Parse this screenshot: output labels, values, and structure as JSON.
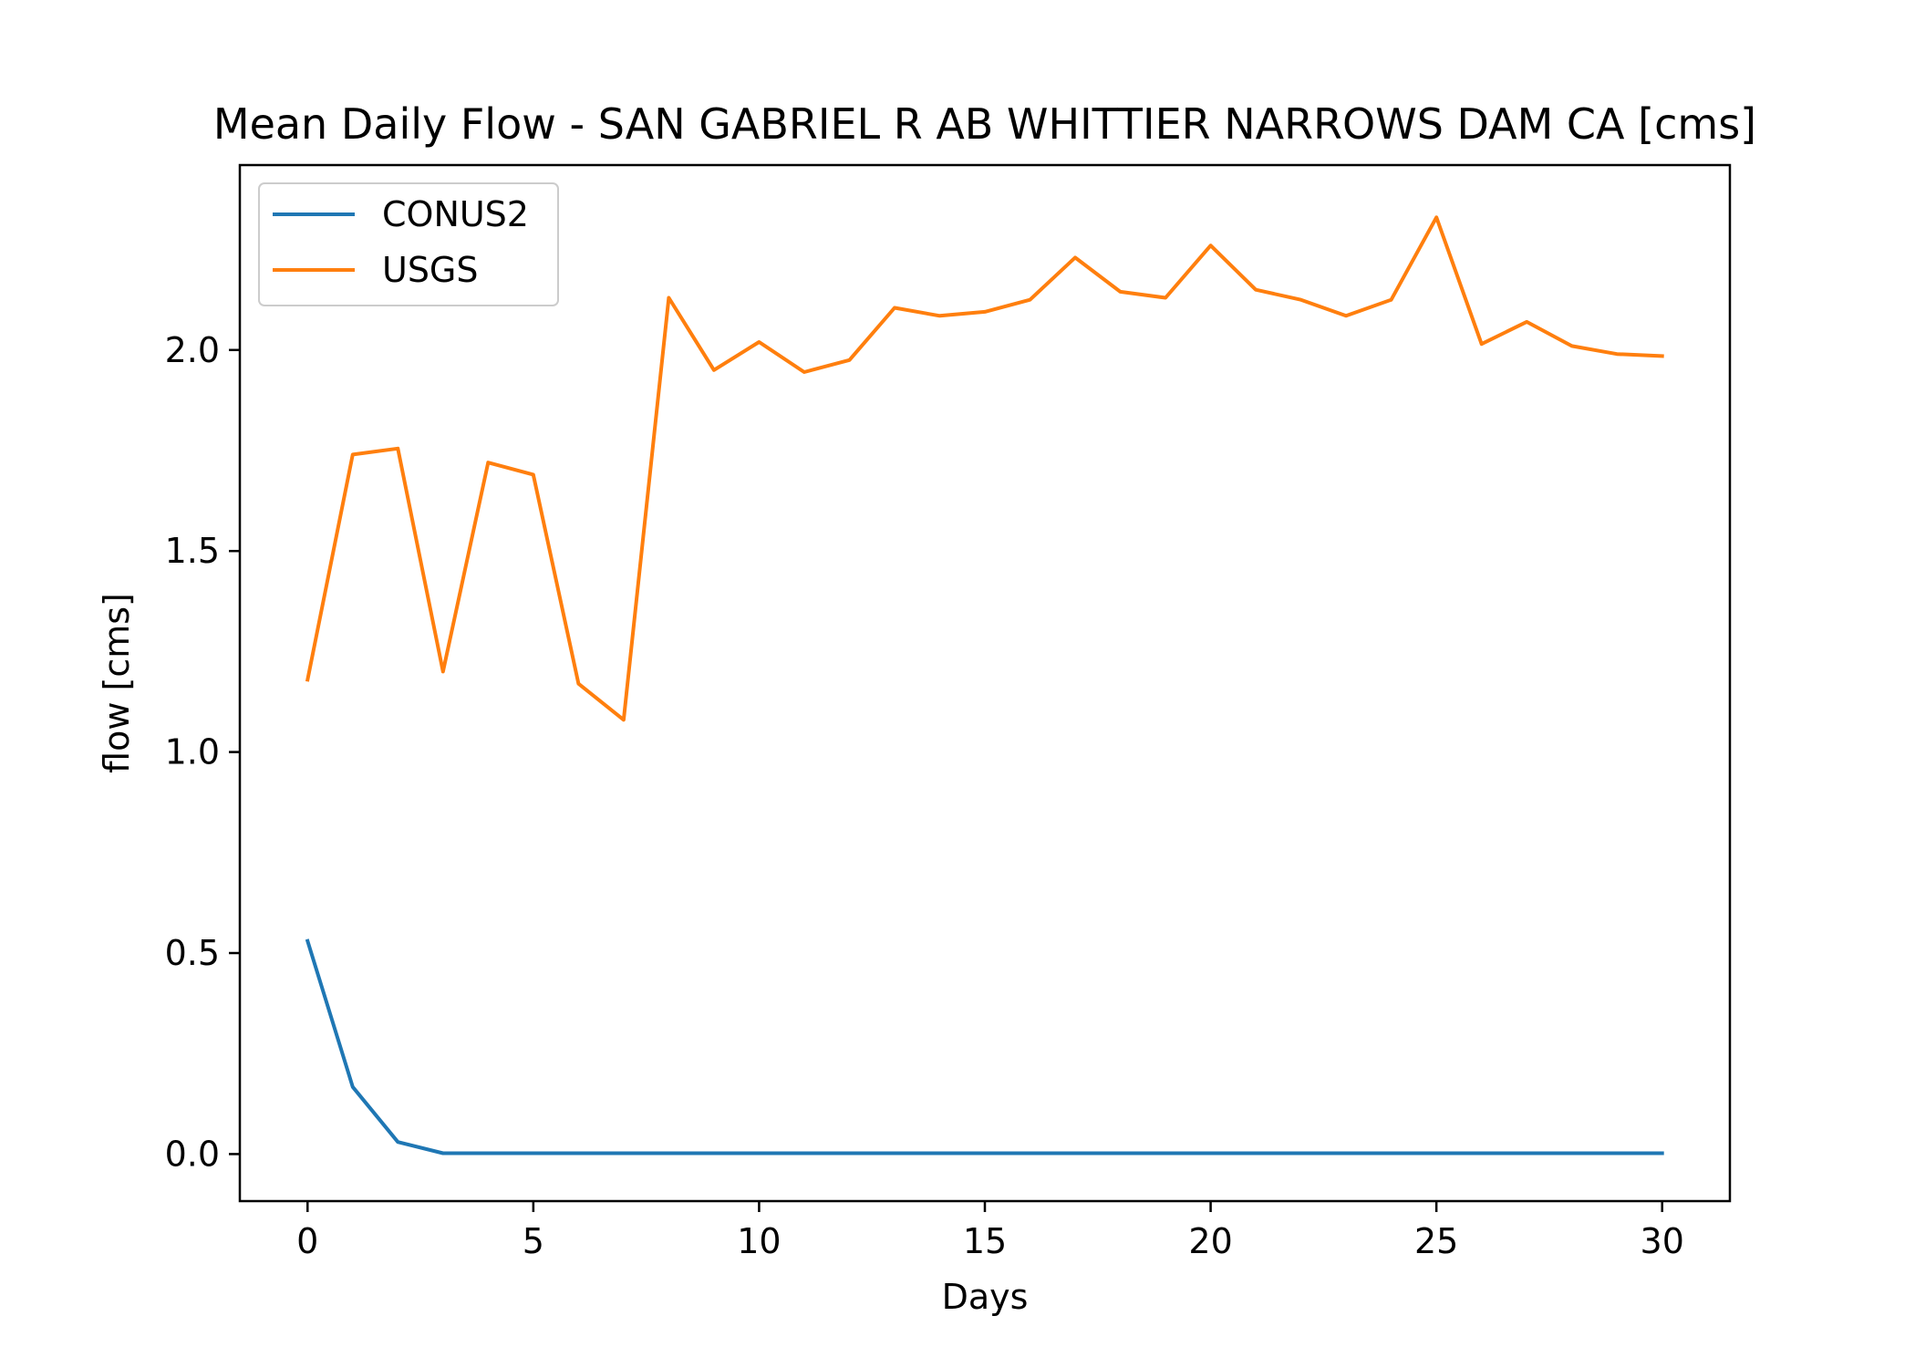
{
  "chart_data": {
    "type": "line",
    "title": "Mean Daily Flow - SAN GABRIEL R AB WHITTIER NARROWS DAM CA [cms]",
    "xlabel": "Days",
    "ylabel": "flow [cms]",
    "xlim": [
      -1.5,
      31.5
    ],
    "ylim": [
      -0.117,
      2.46
    ],
    "xticks": [
      0,
      5,
      10,
      15,
      20,
      25,
      30
    ],
    "yticks": [
      0.0,
      0.5,
      1.0,
      1.5,
      2.0
    ],
    "xtick_labels": [
      "0",
      "5",
      "10",
      "15",
      "20",
      "25",
      "30"
    ],
    "ytick_labels": [
      "0.0",
      "0.5",
      "1.0",
      "1.5",
      "2.0"
    ],
    "grid": false,
    "legend_position": "upper-left",
    "x": [
      0,
      1,
      2,
      3,
      4,
      5,
      6,
      7,
      8,
      9,
      10,
      11,
      12,
      13,
      14,
      15,
      16,
      17,
      18,
      19,
      20,
      21,
      22,
      23,
      24,
      25,
      26,
      27,
      28,
      29,
      30
    ],
    "series": [
      {
        "name": "CONUS2",
        "color": "#1f77b4",
        "values": [
          0.53,
          0.167,
          0.03,
          0.002,
          0.002,
          0.002,
          0.002,
          0.002,
          0.002,
          0.002,
          0.002,
          0.002,
          0.002,
          0.002,
          0.002,
          0.002,
          0.002,
          0.002,
          0.002,
          0.002,
          0.002,
          0.002,
          0.002,
          0.002,
          0.002,
          0.002,
          0.002,
          0.002,
          0.002,
          0.002,
          0.002
        ]
      },
      {
        "name": "USGS",
        "color": "#ff7f0e",
        "values": [
          1.18,
          1.74,
          1.755,
          1.2,
          1.72,
          1.69,
          1.17,
          1.08,
          2.13,
          1.95,
          2.02,
          1.945,
          1.975,
          2.105,
          2.085,
          2.095,
          2.125,
          2.23,
          2.145,
          2.13,
          2.26,
          2.15,
          2.125,
          2.085,
          2.125,
          2.33,
          2.015,
          2.07,
          2.01,
          1.99,
          1.985
        ]
      }
    ]
  }
}
